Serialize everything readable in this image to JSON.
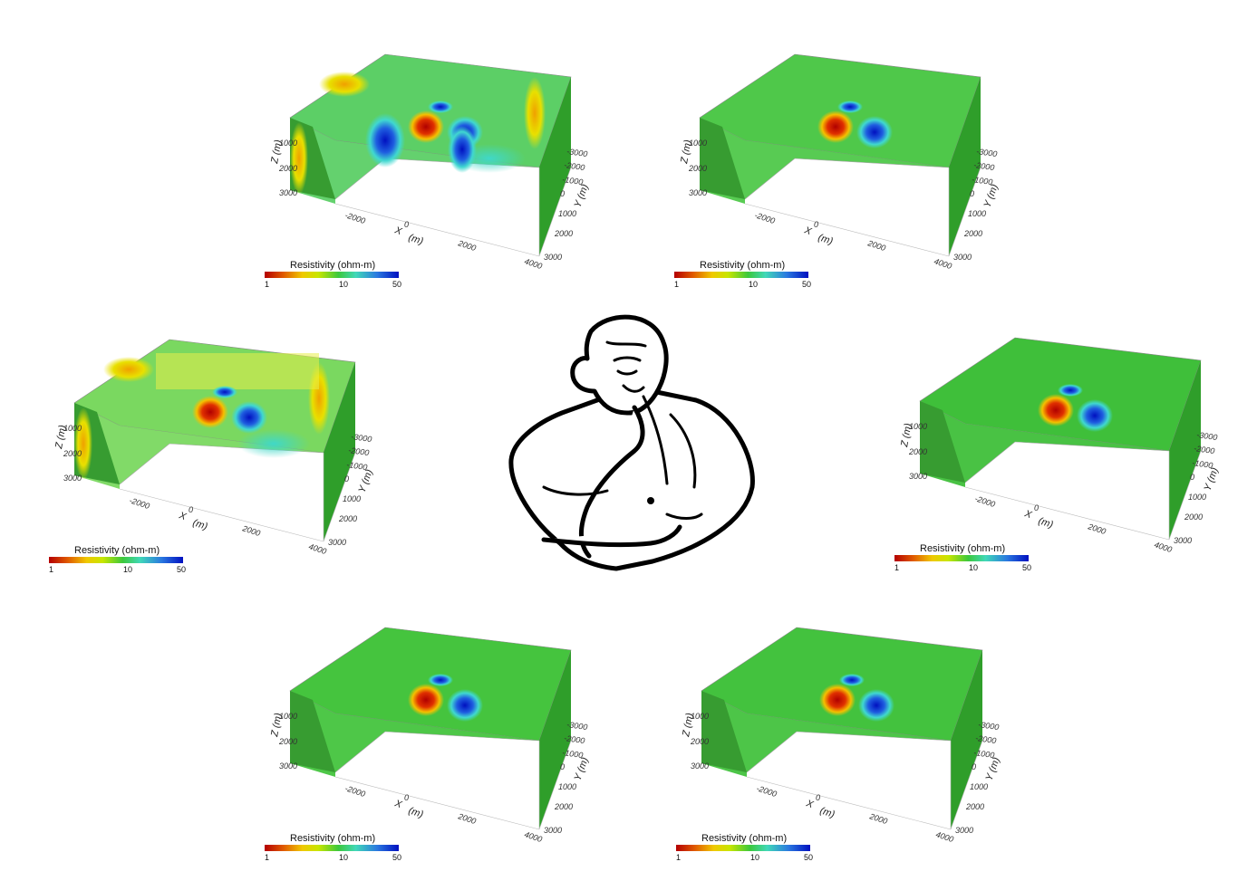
{
  "colors": {
    "background": "#ffffff",
    "colormap": [
      "#b40000",
      "#e05a00",
      "#f0c800",
      "#c8e600",
      "#3cc83c",
      "#40d8b8",
      "#2a78e0",
      "#0010c0"
    ]
  },
  "colorbar": {
    "title": "Resistivity (ohm-m)",
    "ticks": [
      "1",
      "10",
      "50"
    ]
  },
  "axes": {
    "x_label": "X",
    "x_sup": "0",
    "x_unit": "(m)",
    "y_label": "Y",
    "y_unit": "(m)",
    "z_label": "Z",
    "z_unit": "(m)",
    "x_ticks": [
      "-2000",
      "2000",
      "4000"
    ],
    "y_ticks": [
      "-3000",
      "-2000",
      "-1000",
      "0",
      "1000",
      "2000",
      "3000"
    ],
    "z_ticks": [
      "1000",
      "2000",
      "3000"
    ]
  },
  "panels": [
    {
      "id": "panel-1",
      "base": "#5ccf66",
      "dominant": "noisy"
    },
    {
      "id": "panel-2",
      "base": "#4fc84a",
      "dominant": "moderate"
    },
    {
      "id": "panel-3",
      "base": "#7ad860",
      "dominant": "yellow-noisy"
    },
    {
      "id": "panel-4",
      "base": "#3fbf3a",
      "dominant": "clean"
    },
    {
      "id": "panel-5",
      "base": "#45c43e",
      "dominant": "clean"
    },
    {
      "id": "panel-6",
      "base": "#43c23e",
      "dominant": "clean"
    }
  ],
  "center_icon": "thinking-man-icon"
}
